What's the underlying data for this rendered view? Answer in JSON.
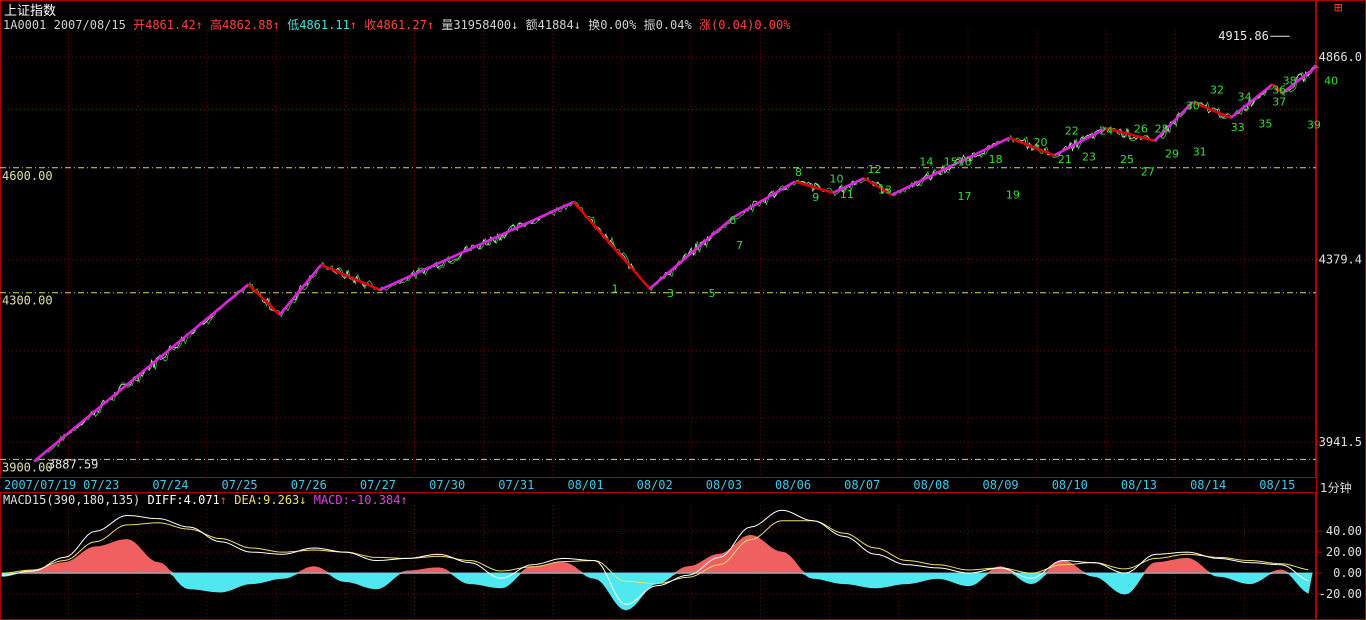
{
  "header": {
    "title": "上证指数",
    "code": "1A0001",
    "date": "2007/08/15",
    "open_label": "开",
    "open": "4861.42",
    "high_label": "高",
    "high": "4862.88",
    "low_label": "低",
    "low": "4861.11",
    "close_label": "收",
    "close": "4861.27",
    "volume_label": "量",
    "volume": "31958400",
    "amount_label": "额",
    "amount": "41884",
    "turnover_label": "换",
    "turnover": "0.00%",
    "amplitude_label": "振",
    "amplitude": "0.04%",
    "change_label": "涨",
    "change": "(0.04)0.00%",
    "arrow_up": "↑",
    "arrow_down": "↓",
    "corner_icon": "⊞"
  },
  "timeframe": "1分钟",
  "macd": {
    "params": "MACD15(390,180,135)",
    "diff_label": "DIFF:",
    "diff": "4.071",
    "dea_label": "DEA:",
    "dea": "9.263",
    "macd_label": "MACD:",
    "macd": "-10.384"
  },
  "chart_data": [
    {
      "type": "line",
      "subtype": "intraday-price-with-zigzag",
      "x": [
        "2007/07/19",
        "07/23",
        "07/24",
        "07/25",
        "07/26",
        "07/27",
        "07/30",
        "07/31",
        "08/01",
        "08/02",
        "08/03",
        "08/06",
        "08/07",
        "08/08",
        "08/09",
        "08/10",
        "08/13",
        "08/14",
        "08/15"
      ],
      "right_axis_ticks": [
        "4866.0",
        "4379.4",
        "3941.5"
      ],
      "left_level_labels": [
        "4600.00",
        "4300.00",
        "3900.00"
      ],
      "ylim": [
        3860,
        4950
      ],
      "annotations": [
        {
          "text": "4915.86",
          "value": 4915.86
        },
        {
          "text": "3887.59",
          "value": 3887.59
        }
      ],
      "zigzag": [
        {
          "t": 0.0,
          "v": 3895
        },
        {
          "t": 3.1,
          "v": 4320
        },
        {
          "t": 3.55,
          "v": 4247
        },
        {
          "t": 4.15,
          "v": 4367
        },
        {
          "t": 5.0,
          "v": 4307
        },
        {
          "t": 7.8,
          "v": 4518
        },
        {
          "t": 8.9,
          "v": 4310
        },
        {
          "t": 10.1,
          "v": 4480
        },
        {
          "t": 11.0,
          "v": 4567
        },
        {
          "t": 11.55,
          "v": 4540
        },
        {
          "t": 12.0,
          "v": 4575
        },
        {
          "t": 12.4,
          "v": 4535
        },
        {
          "t": 14.1,
          "v": 4672
        },
        {
          "t": 14.75,
          "v": 4630
        },
        {
          "t": 15.5,
          "v": 4695
        },
        {
          "t": 16.2,
          "v": 4665
        },
        {
          "t": 16.75,
          "v": 4758
        },
        {
          "t": 17.3,
          "v": 4720
        },
        {
          "t": 17.9,
          "v": 4800
        },
        {
          "t": 18.05,
          "v": 4780
        },
        {
          "t": 18.55,
          "v": 4845
        }
      ],
      "zigzag_colors": {
        "up": "#e020e0",
        "down": "#e00000"
      },
      "wave_labels": [
        {
          "text": "1",
          "t": 8.4,
          "v": 4300
        },
        {
          "text": "3",
          "t": 9.2,
          "v": 4290
        },
        {
          "text": "5",
          "t": 9.8,
          "v": 4290
        },
        {
          "text": "6",
          "t": 10.1,
          "v": 4465
        },
        {
          "text": "7",
          "t": 10.2,
          "v": 4405
        },
        {
          "text": "8",
          "t": 11.05,
          "v": 4580
        },
        {
          "text": "9",
          "t": 11.3,
          "v": 4520
        },
        {
          "text": "10",
          "t": 11.6,
          "v": 4565
        },
        {
          "text": "11",
          "t": 11.75,
          "v": 4527
        },
        {
          "text": "12",
          "t": 12.15,
          "v": 4587
        },
        {
          "text": "13",
          "t": 12.3,
          "v": 4538
        },
        {
          "text": "14",
          "t": 12.9,
          "v": 4605
        },
        {
          "text": "15",
          "t": 13.25,
          "v": 4605
        },
        {
          "text": "16",
          "t": 13.45,
          "v": 4605
        },
        {
          "text": "17",
          "t": 13.45,
          "v": 4523
        },
        {
          "text": "18",
          "t": 13.9,
          "v": 4612
        },
        {
          "text": "19",
          "t": 14.15,
          "v": 4526
        },
        {
          "text": "20",
          "t": 14.55,
          "v": 4652
        },
        {
          "text": "21",
          "t": 14.9,
          "v": 4612
        },
        {
          "text": "22",
          "t": 15.0,
          "v": 4680
        },
        {
          "text": "23",
          "t": 15.25,
          "v": 4618
        },
        {
          "text": "24",
          "t": 15.5,
          "v": 4680
        },
        {
          "text": "25",
          "t": 15.8,
          "v": 4612
        },
        {
          "text": "26",
          "t": 16.0,
          "v": 4685
        },
        {
          "text": "27",
          "t": 16.1,
          "v": 4582
        },
        {
          "text": "28",
          "t": 16.3,
          "v": 4685
        },
        {
          "text": "29",
          "t": 16.45,
          "v": 4625
        },
        {
          "text": "30",
          "t": 16.75,
          "v": 4740
        },
        {
          "text": "31",
          "t": 16.85,
          "v": 4630
        },
        {
          "text": "32",
          "t": 17.1,
          "v": 4778
        },
        {
          "text": "33",
          "t": 17.4,
          "v": 4688
        },
        {
          "text": "34",
          "t": 17.5,
          "v": 4762
        },
        {
          "text": "35",
          "t": 17.8,
          "v": 4697
        },
        {
          "text": "36",
          "t": 18.0,
          "v": 4778
        },
        {
          "text": "37",
          "t": 18.0,
          "v": 4750
        },
        {
          "text": "38",
          "t": 18.15,
          "v": 4800
        },
        {
          "text": "39",
          "t": 18.5,
          "v": 4694
        },
        {
          "text": "40",
          "t": 18.75,
          "v": 4800
        }
      ]
    },
    {
      "type": "area",
      "subtype": "macd",
      "right_axis_ticks": [
        "40.00",
        "20.00",
        "0.00",
        "-20.00"
      ],
      "ylim": [
        -40,
        65
      ],
      "diff": [
        -2,
        2,
        15,
        40,
        55,
        52,
        44,
        30,
        20,
        18,
        24,
        20,
        12,
        14,
        18,
        10,
        -5,
        8,
        14,
        12,
        -30,
        -12,
        -2,
        15,
        44,
        60,
        50,
        35,
        18,
        8,
        5,
        0,
        5,
        -5,
        12,
        10,
        0,
        18,
        20,
        14,
        10,
        8,
        -8
      ],
      "dea": [
        0,
        3,
        12,
        30,
        46,
        48,
        42,
        33,
        24,
        20,
        22,
        20,
        15,
        14,
        16,
        12,
        2,
        6,
        11,
        12,
        -8,
        -10,
        -4,
        8,
        32,
        50,
        50,
        38,
        24,
        12,
        8,
        3,
        5,
        0,
        8,
        10,
        4,
        14,
        18,
        15,
        12,
        9,
        3
      ],
      "hist": [
        -3,
        3,
        10,
        25,
        32,
        10,
        -15,
        -18,
        -10,
        -5,
        6,
        -8,
        -15,
        2,
        5,
        -10,
        -14,
        6,
        10,
        -5,
        -35,
        -10,
        6,
        18,
        36,
        20,
        -5,
        -10,
        -14,
        -10,
        -5,
        -12,
        6,
        -10,
        12,
        -3,
        -20,
        10,
        14,
        -3,
        -10,
        3,
        -20
      ]
    }
  ]
}
